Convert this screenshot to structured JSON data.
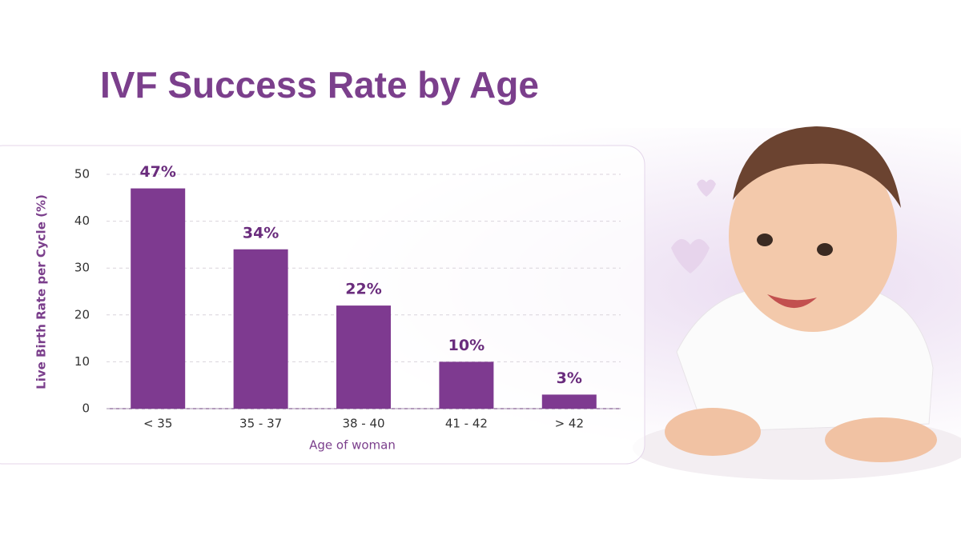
{
  "chart_data": {
    "type": "bar",
    "title": "IVF Success Rate by Age",
    "y_label": "Live Birth Rate per Cycle (%)",
    "x_label": "Age of woman",
    "categories": [
      "< 35",
      "35 - 37",
      "38 - 40",
      "41 - 42",
      "> 42"
    ],
    "values": [
      47,
      34,
      22,
      10,
      3
    ],
    "value_labels": [
      "47%",
      "34%",
      "22%",
      "10%",
      "3%"
    ],
    "color": "#7e3a90",
    "ylim": [
      0,
      50
    ],
    "yticks": [
      0,
      10,
      20,
      30,
      40,
      50
    ],
    "grid": true
  }
}
